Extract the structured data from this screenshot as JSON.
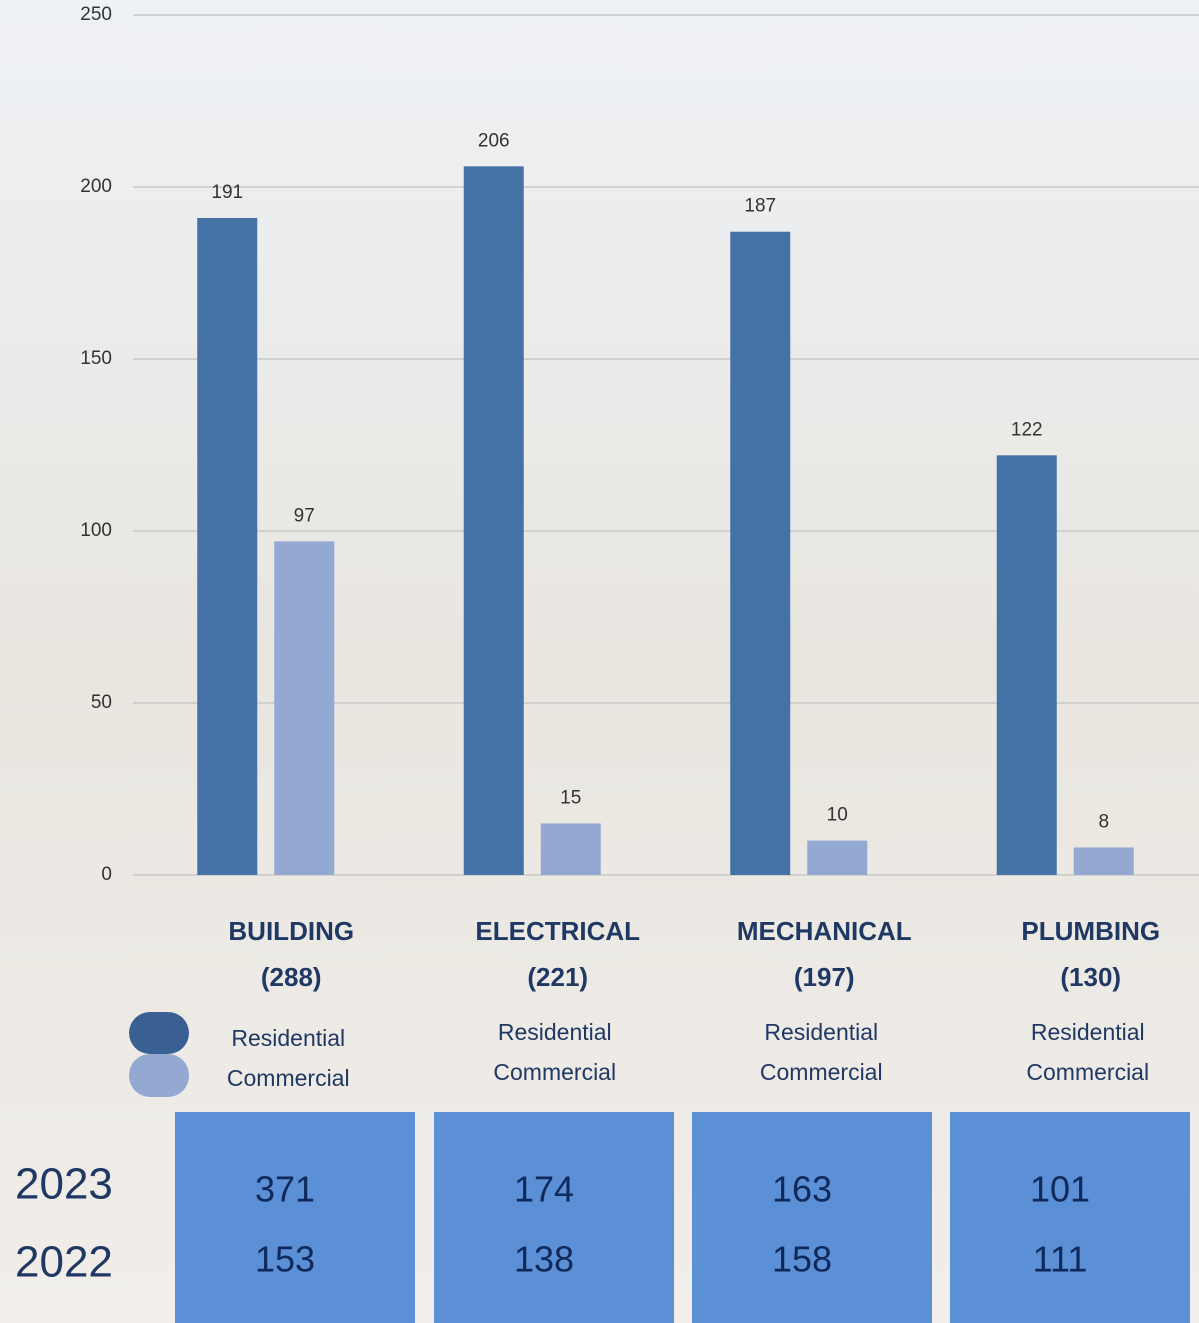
{
  "chart_data": {
    "type": "bar",
    "categories": [
      "BUILDING",
      "ELECTRICAL",
      "MECHANICAL",
      "PLUMBING"
    ],
    "category_totals": [
      "(288)",
      "(221)",
      "(197)",
      "(130)"
    ],
    "series": [
      {
        "name": "Residential",
        "color": "#4472a6",
        "values": [
          191,
          206,
          187,
          122
        ]
      },
      {
        "name": "Commercial",
        "color": "#94a9d2",
        "values": [
          97,
          15,
          10,
          8
        ]
      }
    ],
    "ylim": [
      0,
      250
    ],
    "yticks": [
      0,
      50,
      100,
      150,
      200,
      250
    ],
    "grid": true
  },
  "table": {
    "row_labels": [
      "2023",
      "2022"
    ],
    "columns": [
      [
        "371",
        "153"
      ],
      [
        "174",
        "138"
      ],
      [
        "163",
        "158"
      ],
      [
        "101",
        "111"
      ]
    ]
  }
}
